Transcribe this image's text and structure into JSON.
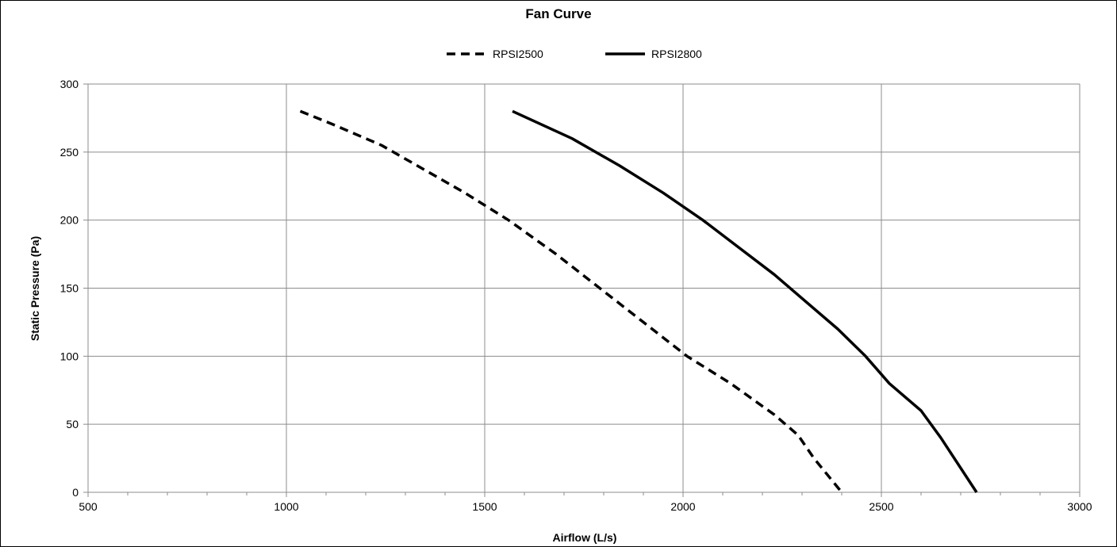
{
  "chart_data": {
    "type": "line",
    "title": "Fan Curve",
    "xlabel": "Airflow (L/s)",
    "ylabel": "Static Pressure (Pa)",
    "xlim": [
      500,
      3000
    ],
    "ylim": [
      0,
      300
    ],
    "x_major_ticks": [
      500,
      1000,
      1500,
      2000,
      2500,
      3000
    ],
    "x_minor_step": 100,
    "y_ticks": [
      0,
      50,
      100,
      150,
      200,
      250,
      300
    ],
    "grid": true,
    "legend_position": "top",
    "series": [
      {
        "name": "RPSI2500",
        "style": "dashed",
        "color": "#000000",
        "points": [
          {
            "x": 1035,
            "y": 280
          },
          {
            "x": 1120,
            "y": 270
          },
          {
            "x": 1240,
            "y": 255
          },
          {
            "x": 1330,
            "y": 240
          },
          {
            "x": 1450,
            "y": 220
          },
          {
            "x": 1560,
            "y": 200
          },
          {
            "x": 1680,
            "y": 175
          },
          {
            "x": 1790,
            "y": 150
          },
          {
            "x": 1900,
            "y": 125
          },
          {
            "x": 2010,
            "y": 100
          },
          {
            "x": 2120,
            "y": 80
          },
          {
            "x": 2230,
            "y": 57
          },
          {
            "x": 2290,
            "y": 42
          },
          {
            "x": 2330,
            "y": 25
          },
          {
            "x": 2400,
            "y": 0
          }
        ]
      },
      {
        "name": "RPSI2800",
        "style": "solid",
        "color": "#000000",
        "points": [
          {
            "x": 1570,
            "y": 280
          },
          {
            "x": 1720,
            "y": 260
          },
          {
            "x": 1840,
            "y": 240
          },
          {
            "x": 1950,
            "y": 220
          },
          {
            "x": 2050,
            "y": 200
          },
          {
            "x": 2140,
            "y": 180
          },
          {
            "x": 2230,
            "y": 160
          },
          {
            "x": 2310,
            "y": 140
          },
          {
            "x": 2390,
            "y": 120
          },
          {
            "x": 2460,
            "y": 100
          },
          {
            "x": 2520,
            "y": 80
          },
          {
            "x": 2600,
            "y": 60
          },
          {
            "x": 2650,
            "y": 40
          },
          {
            "x": 2740,
            "y": 0
          }
        ]
      }
    ]
  }
}
